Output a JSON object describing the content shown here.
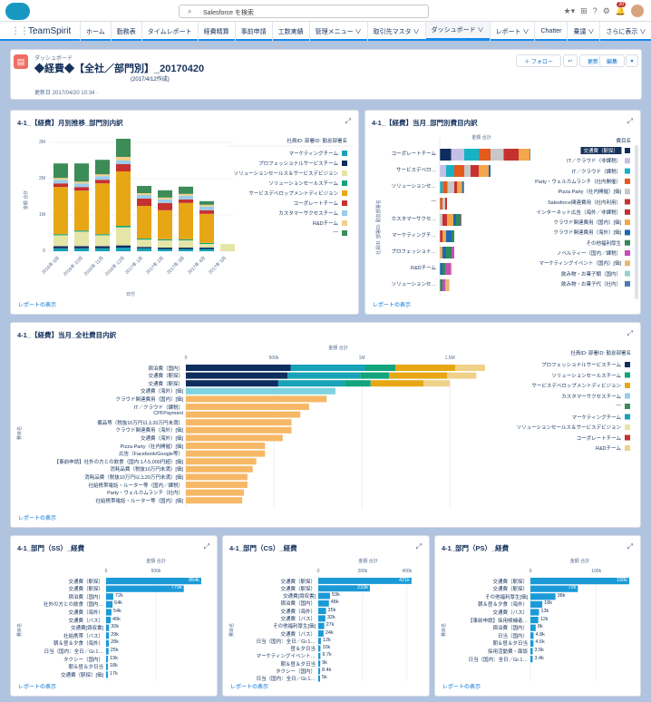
{
  "search": {
    "placeholder": "Salesforce を検索"
  },
  "topbar": {
    "notif_count": "20"
  },
  "nav": {
    "app": "TeamSpirit",
    "tabs": [
      "ホーム",
      "勤務表",
      "タイムレポート",
      "経費精算",
      "事前申請",
      "工数実績",
      "管理メニュー ∨",
      "取引先マスタ ∨",
      "ダッシュボード ∨",
      "レポート ∨",
      "Chatter",
      "乗議 ∨",
      "さらに表示 ∨"
    ],
    "active_index": 8
  },
  "header": {
    "object": "ダッシュボード",
    "title": "◆経費◆【全社／部門別】_20170420",
    "note": "(2017/4/12作成)",
    "updated": "更新日 2017/04/20 10:34 ·",
    "follow": "＋ フォロー",
    "refresh": "更新",
    "edit": "編集"
  },
  "link_text": "レポートの表示",
  "colors": {
    "マーケティングチーム": "#17a2b8",
    "プロフェッショナルサービスチーム": "#0d2d5e",
    "ソリューションセールス＆サービスデビ…": "#e5e5a8",
    "ソリューションセールスチーム": "#12a47d",
    "サービスデベロップメントディビジョン": "#e7a714",
    "コーポレートチーム": "#c53131",
    "カスタマーサクセスチーム": "#99ccee",
    "R&Dチーム": "#f0d18a",
    "—": "#3c8c57",
    "交通費（駅探）": "#0d2d5e",
    "IT／クラウド（非課税）": "#c5bfe6",
    "IT／クラウド（課税）": "#17b3c4",
    "Party・ウェルカムランチ（社内開催）": "#e35a1c",
    "Pizza Party（社内開催）[価]": "#c7c7c7",
    "Salesforce関連費用（社内利用）": "#c53131",
    "インターネット広告（海外／非課税）": "#c53131",
    "クラウド関連費用（国内）[価]": "#f3a64b",
    "クラウド関連費用（海外）[価]": "#1e68b2",
    "その他福利厚生": "#2e8a58",
    "ノベルティー（国内／課税）": "#c84cb8",
    "マーケティングイベント（国内）[価]": "#e8b870",
    "飲み物・お菓子類（国内）": "#93d2ce",
    "飲み物・お菓子代（社内）": "#4a79b1"
  },
  "chart_data": [
    {
      "type": "bar",
      "title": "4-1_【経費】月別推移_部門別内訳",
      "xlabel": "日付",
      "ylabel": "金額 合計",
      "legend_title": "社員ID: 部署ID: 勤怠部署名",
      "legend_position": "right",
      "ylim": [
        0,
        3000000
      ],
      "yticks": [
        "0",
        "1M",
        "2M",
        "3M"
      ],
      "categories": [
        "2016年 9月",
        "2016年 10月",
        "2016年 11月",
        "2016年 12月",
        "2017年 1月",
        "2017年 2月",
        "2017年 3月",
        "2017年 4月",
        "2017年 5月"
      ],
      "series": [
        {
          "name": "マーケティングチーム",
          "values": [
            80000,
            80000,
            80000,
            100000,
            80000,
            60000,
            60000,
            60000,
            0
          ]
        },
        {
          "name": "プロフェッショナルサービスチーム",
          "values": [
            60000,
            60000,
            60000,
            60000,
            40000,
            40000,
            40000,
            40000,
            0
          ]
        },
        {
          "name": "ソリューションセールス＆サービスデビジョン",
          "values": [
            300000,
            400000,
            300000,
            500000,
            200000,
            200000,
            200000,
            100000,
            200000
          ]
        },
        {
          "name": "ソリューションセールスチーム",
          "values": [
            30000,
            30000,
            30000,
            40000,
            30000,
            30000,
            30000,
            30000,
            0
          ]
        },
        {
          "name": "サービスデベロップメントディビジョン",
          "values": [
            1300000,
            1100000,
            1400000,
            1500000,
            900000,
            800000,
            1000000,
            800000,
            0
          ]
        },
        {
          "name": "コーポレートチーム",
          "values": [
            100000,
            100000,
            100000,
            200000,
            200000,
            200000,
            100000,
            100000,
            0
          ]
        },
        {
          "name": "カスタマーサクセスチーム",
          "values": [
            100000,
            100000,
            100000,
            100000,
            100000,
            100000,
            100000,
            100000,
            0
          ]
        },
        {
          "name": "R&Dチーム",
          "values": [
            50000,
            50000,
            50000,
            100000,
            50000,
            50000,
            50000,
            50000,
            0
          ]
        },
        {
          "name": "—",
          "values": [
            400000,
            500000,
            400000,
            500000,
            200000,
            200000,
            200000,
            100000,
            0
          ]
        }
      ]
    },
    {
      "type": "bar",
      "orientation": "horizontal",
      "title": "4-1_【経費】当月_部門別費目内訳",
      "xlabel": "金額 合計",
      "ylabel": "社員ID: 部署ID: 勤怠部署名",
      "legend_title": "費目名",
      "legend_position": "right",
      "categories": [
        "コーポレートチーム",
        "サービスデベロ…",
        "ソリューションセ…",
        "—",
        "カスタマーサクセ…",
        "マーケティングチ…",
        "プロフェッショナ…",
        "R&Dチーム",
        "ソリューションセ…"
      ],
      "values": [
        750000,
        420000,
        200000,
        60000,
        180000,
        120000,
        120000,
        100000,
        80000
      ],
      "legend": [
        "交通費（駅探）",
        "IT／クラウド（非課税）",
        "IT／クラウド（課税）",
        "Party・ウェルカムランチ（社内開催）",
        "Pizza Party（社内開催）[価]",
        "Salesforce関連費用（社内利用）",
        "インターネット広告（海外／非課税）",
        "クラウド関連費用（国内）[価]",
        "クラウド関連費用（海外）[価]",
        "その他福利厚生",
        "ノベルティー（国内／課税）",
        "マーケティングイベント（国内）[価]",
        "飲み物・お菓子類（国内）",
        "飲み物・お菓子代（社内）"
      ]
    },
    {
      "type": "bar",
      "orientation": "horizontal",
      "title": "4-1_【経費】当月_全社費目内訳",
      "xlabel": "金額 合計",
      "ylabel": "費目名",
      "legend_title": "社員ID: 部署ID: 勤怠部署名",
      "legend_position": "right",
      "xlim": [
        0,
        1700000
      ],
      "xticks": [
        "0",
        "500k",
        "1M",
        "1.5M"
      ],
      "categories": [
        "宿泊費（国内）",
        "交通費（駅探）",
        "交通費（駅探）",
        "交通費（海外）[価]",
        "クラウド関連費用（国内）[価]",
        "IT／クラウド（課税）",
        "CPFPayment",
        "備品等（税抜10万円以上20万円未満）",
        "クラウド関連費用（海外）[価]",
        "交通費（海外）[価]",
        "Pizza Party（社内開催）[価]",
        "広告（Facebook/Google等）",
        "【事前申請】社外の方との飲食（国内:1人5,000円超）[価]",
        "消耗品費（税抜10万円未満）[価]",
        "消耗品費（税抜10万円以上20万円未満）[価]",
        "社給携帯電話・ルーター等（国内／課税）",
        "Party・ウェルカムランチ（社内）",
        "社給携帯電話・ルーター等（国内）[価]"
      ],
      "values": [
        1700000,
        1650000,
        1500000,
        850000,
        800000,
        700000,
        650000,
        600000,
        600000,
        550000,
        450000,
        450000,
        400000,
        380000,
        350000,
        350000,
        330000,
        320000
      ],
      "legend": [
        "プロフェッショナルサービスチーム",
        "ソリューションセールスチーム",
        "サービスデベロップメントディビジョン",
        "カスタマーサクセスチーム",
        "—",
        "マーケティングチーム",
        "ソリューションセールス＆サービスデビジョン",
        "コーポレートチーム",
        "R&Dチーム"
      ]
    },
    {
      "type": "bar",
      "orientation": "horizontal",
      "title": "4-1_部門（SS）_経費",
      "xlabel": "金額 合計",
      "ylabel": "費目名",
      "xlim": [
        0,
        1000000
      ],
      "xticks": [
        "0",
        "500k"
      ],
      "categories": [
        "交通費（駅探）",
        "交通費（駅探）",
        "宿泊費（国内）",
        "社外の方との飲食（国内…",
        "交通費（海外）",
        "交通費（バス）",
        "交通費[領収書]",
        "社給携帯（バス）",
        "朝＆昼＆夕食（海外）",
        "日当（国内：全日／Gr.1…",
        "タクシー（国内）",
        "朝＆昼＆夕日当",
        "交通費（駅探）[価]"
      ],
      "values": [
        954000,
        779000,
        72000,
        64000,
        54000,
        46000,
        30000,
        29000,
        28000,
        25000,
        19000,
        18000,
        17000
      ],
      "labels": [
        "954k",
        "779k",
        "72k",
        "64k",
        "54k",
        "46k",
        "30k",
        "29k",
        "28k",
        "25k",
        "19k",
        "18k",
        "17k"
      ]
    },
    {
      "type": "bar",
      "orientation": "horizontal",
      "title": "4-1_部門（CS）_経費",
      "xlabel": "金額 合計",
      "ylabel": "費目名",
      "xlim": [
        0,
        450000
      ],
      "xticks": [
        "0",
        "200k",
        "400k"
      ],
      "categories": [
        "交通費（駅探）",
        "交通費（駅探）",
        "交通費[領収書]",
        "宿泊費（国内）",
        "交通費（海外）",
        "交通費（バス）",
        "その他福利厚生[価]",
        "交通費（バス）",
        "日当（国内：全日／Gr.1…",
        "昼＆夕日当",
        "マーケティングイベント…",
        "朝＆昼＆夕日当",
        "タクシー（国内）",
        "日当（国内：全日／Gr.1…"
      ],
      "values": [
        421000,
        233000,
        53000,
        48000,
        35000,
        32000,
        27000,
        24000,
        12000,
        10000,
        9700,
        9000,
        8400,
        5000
      ],
      "labels": [
        "421k",
        "233k",
        "53k",
        "48k",
        "35k",
        "32k",
        "27k",
        "24k",
        "12k",
        "10k",
        "9.7k",
        "9k",
        "8.4k",
        "5k"
      ]
    },
    {
      "type": "bar",
      "orientation": "horizontal",
      "title": "4-1_部門（PS）_経費",
      "xlabel": "金額 合計",
      "ylabel": "費目名",
      "xlim": [
        0,
        150000
      ],
      "xticks": [
        "0",
        "100k"
      ],
      "categories": [
        "交通費（駅探）",
        "交通費（駅探）",
        "その他福利厚生[価]",
        "朝＆昼＆夕食（海外）",
        "交通費（バス）",
        "【事前申請】採用候補者…",
        "宿泊費（国内）",
        "日当（国内）",
        "朝＆昼＆夕日当",
        "採用活動費・面談",
        "日当（国内：全日／Gr.1…"
      ],
      "values": [
        150000,
        72000,
        38000,
        18000,
        13000,
        12000,
        8000,
        4800,
        4600,
        3500,
        3400
      ],
      "labels": [
        "150k",
        "72k",
        "38k",
        "18k",
        "13k",
        "12k",
        "8k",
        "4.8k",
        "4.6k",
        "3.5k",
        "3.4k"
      ]
    }
  ]
}
